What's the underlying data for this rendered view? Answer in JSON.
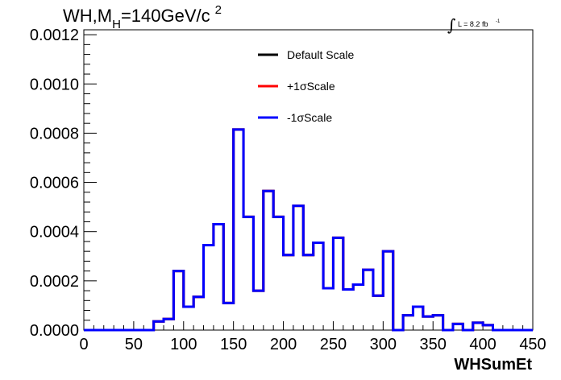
{
  "title": {
    "main": "WH,M",
    "subscript": "H",
    "rest": "=140GeV/c",
    "superscript": "2"
  },
  "lumi": {
    "integral": "∫",
    "text": "L = 8.2 fb",
    "exponent": "-1"
  },
  "chart_data": {
    "type": "histogram",
    "xlabel": "WHSumEt",
    "ylabel": "",
    "xlim": [
      0,
      450
    ],
    "ylim": [
      0,
      0.00122
    ],
    "xticks": [
      0,
      50,
      100,
      150,
      200,
      250,
      300,
      350,
      400,
      450
    ],
    "xtick_labels": [
      "0",
      "50",
      "100",
      "150",
      "200",
      "250",
      "300",
      "350",
      "400",
      "450"
    ],
    "yticks": [
      0,
      0.0002,
      0.0004,
      0.0006,
      0.0008,
      0.001,
      0.0012
    ],
    "ytick_labels": [
      "0.0000",
      "0.0002",
      "0.0004",
      "0.0006",
      "0.0008",
      "0.0010",
      "0.0012"
    ],
    "grid": false,
    "legend_position": "top-right",
    "bin_width": 10,
    "bin_edges_start": 0,
    "series": [
      {
        "name": "Default Scale",
        "color": "#000000",
        "values": [
          0,
          0,
          0,
          0,
          0,
          0,
          0,
          3.5e-05,
          4.5e-05,
          0.00024,
          9.5e-05,
          0.000135,
          0.000345,
          0.00043,
          0.00011,
          0.000815,
          0.00046,
          0.00016,
          0.000565,
          0.00046,
          0.000305,
          0.000505,
          0.000305,
          0.000355,
          0.00017,
          0.000375,
          0.000165,
          0.000185,
          0.000245,
          0.00014,
          0.00032,
          0.0,
          6e-05,
          9.5e-05,
          5.5e-05,
          6e-05,
          0.0,
          2.5e-05,
          0.0,
          3e-05,
          2e-05,
          0,
          0,
          0,
          0
        ]
      },
      {
        "name": "+1σScale",
        "color": "#ff0000",
        "values": [
          0,
          0,
          0,
          0,
          0,
          0,
          0,
          3.5e-05,
          4.5e-05,
          0.00024,
          9.5e-05,
          0.000135,
          0.000345,
          0.00043,
          0.00011,
          0.000815,
          0.00046,
          0.00016,
          0.000565,
          0.00046,
          0.000305,
          0.000505,
          0.000305,
          0.000355,
          0.00017,
          0.000375,
          0.000165,
          0.000185,
          0.000245,
          0.00014,
          0.00032,
          0.0,
          6e-05,
          9.5e-05,
          5.5e-05,
          6e-05,
          0.0,
          2.5e-05,
          0.0,
          3e-05,
          2e-05,
          0,
          0,
          0,
          0
        ]
      },
      {
        "name": "-1σScale",
        "color": "#0000ff",
        "values": [
          0,
          0,
          0,
          0,
          0,
          0,
          0,
          3.5e-05,
          4.5e-05,
          0.00024,
          9.5e-05,
          0.000135,
          0.000345,
          0.00043,
          0.00011,
          0.000815,
          0.00046,
          0.00016,
          0.000565,
          0.00046,
          0.000305,
          0.000505,
          0.000305,
          0.000355,
          0.00017,
          0.000375,
          0.000165,
          0.000185,
          0.000245,
          0.00014,
          0.00032,
          0.0,
          6e-05,
          9.5e-05,
          5.5e-05,
          6e-05,
          0.0,
          2.5e-05,
          0.0,
          3e-05,
          2e-05,
          0,
          0,
          0,
          0
        ]
      }
    ]
  }
}
